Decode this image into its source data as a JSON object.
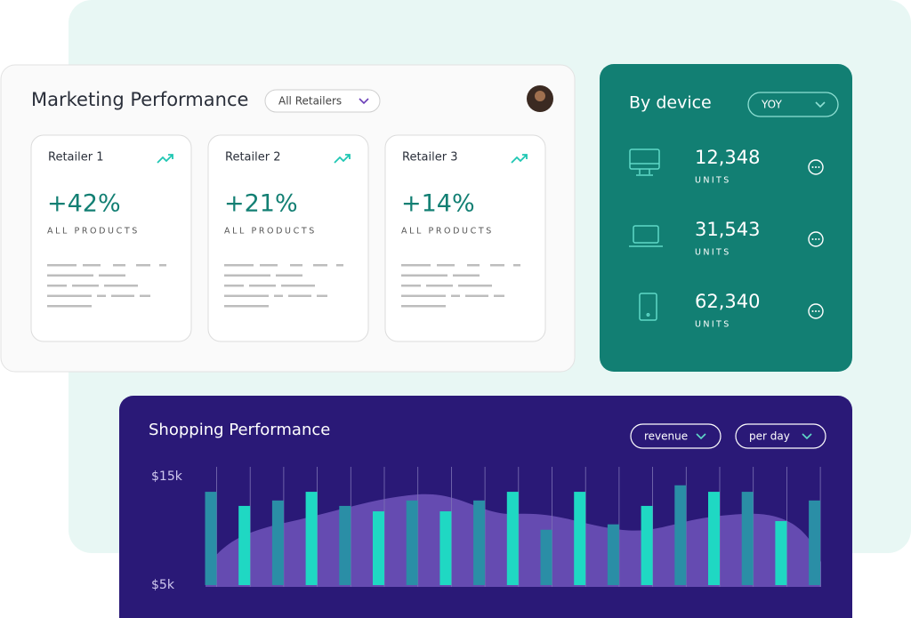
{
  "marketing": {
    "title": "Marketing Performance",
    "filter": "All Retailers",
    "retailers": [
      {
        "name": "Retailer 1",
        "change": "+42%",
        "label": "ALL PRODUCTS"
      },
      {
        "name": "Retailer 2",
        "change": "+21%",
        "label": "ALL PRODUCTS"
      },
      {
        "name": "Retailer 3",
        "change": "+14%",
        "label": "ALL PRODUCTS"
      }
    ]
  },
  "devices": {
    "title": "By device",
    "filter": "YOY",
    "items": [
      {
        "count": "12,348",
        "unit": "UNITS"
      },
      {
        "count": "31,543",
        "unit": "UNITS"
      },
      {
        "count": "62,340",
        "unit": "UNITS"
      }
    ]
  },
  "shopping": {
    "filters": [
      "revenue",
      "per day"
    ]
  },
  "chart_data": {
    "type": "bar",
    "title": "Shopping Performance",
    "values": [
      13600,
      12300,
      12800,
      13600,
      12300,
      11800,
      12800,
      11800,
      12800,
      13600,
      10100,
      13600,
      10600,
      12300,
      14200,
      13600,
      13600,
      10900,
      12800
    ],
    "colors": [
      "#2a8ea6",
      "#1fd8c3"
    ],
    "ylim": [
      5000,
      15000
    ],
    "yticks": [
      {
        "value": 5000,
        "label": "$5k"
      },
      {
        "value": 15000,
        "label": "$15k"
      }
    ],
    "grid": true
  }
}
